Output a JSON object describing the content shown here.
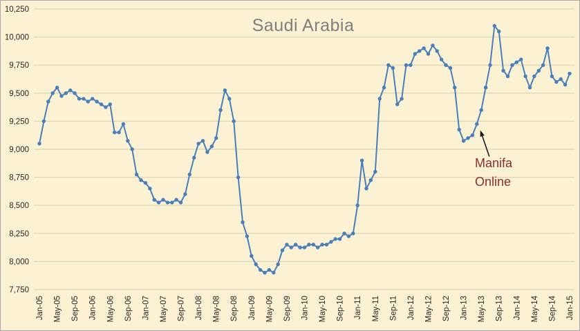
{
  "page": {
    "background": "#FBF1D3",
    "border_color": "#A8A8A8"
  },
  "chart_data": {
    "type": "line",
    "title": "Saudi Arabia",
    "title_color": "#7F7F7F",
    "line_color": "#4A7EBB",
    "marker": "circle",
    "marker_color": "#4A7EBB",
    "grid": "horizontal",
    "grid_color": "#D9CFAC",
    "legend_position": "none",
    "frequency": "monthly",
    "x_first": "Jan-05",
    "x_last": "Jan-15",
    "x_tick_every": 4,
    "x_tick_labels": [
      "Jan-05",
      "May-05",
      "Sep-05",
      "Jan-06",
      "May-06",
      "Sep-06",
      "Jan-07",
      "May-07",
      "Sep-07",
      "Jan-08",
      "May-08",
      "Sep-08",
      "Jan-09",
      "May-09",
      "Sep-09",
      "Jan-10",
      "May-10",
      "Sep-10",
      "Jan-11",
      "May-11",
      "Sep-11",
      "Jan-12",
      "May-12",
      "Sep-12",
      "Jan-13",
      "May-13",
      "Sep-13",
      "Jan-14",
      "May-14",
      "Sep-14",
      "Jan-15"
    ],
    "ylim": [
      7750,
      10250
    ],
    "y_ticks": [
      7750,
      8000,
      8250,
      8500,
      8750,
      9000,
      9250,
      9500,
      9750,
      10000,
      10250
    ],
    "y_tick_labels": [
      "7,750",
      "8,000",
      "8,250",
      "8,500",
      "8,750",
      "9,000",
      "9,250",
      "9,500",
      "9,750",
      "10,000",
      "10,250"
    ],
    "series": [
      {
        "name": "Saudi Arabia",
        "values": [
          9050,
          9250,
          9425,
          9500,
          9550,
          9475,
          9500,
          9525,
          9500,
          9450,
          9450,
          9425,
          9450,
          9425,
          9400,
          9375,
          9400,
          9150,
          9150,
          9225,
          9075,
          9000,
          8775,
          8725,
          8700,
          8650,
          8550,
          8525,
          8550,
          8525,
          8525,
          8550,
          8525,
          8600,
          8775,
          8925,
          9050,
          9075,
          8975,
          9025,
          9100,
          9350,
          9525,
          9450,
          9250,
          8750,
          8350,
          8225,
          8050,
          7975,
          7925,
          7900,
          7925,
          7900,
          7975,
          8100,
          8150,
          8125,
          8150,
          8125,
          8125,
          8150,
          8150,
          8125,
          8150,
          8150,
          8175,
          8200,
          8200,
          8250,
          8225,
          8250,
          8500,
          8900,
          8650,
          8725,
          8800,
          9450,
          9550,
          9750,
          9725,
          9400,
          9450,
          9750,
          9750,
          9850,
          9875,
          9900,
          9850,
          9925,
          9875,
          9800,
          9750,
          9725,
          9550,
          9175,
          9075,
          9100,
          9125,
          9225,
          9350,
          9550,
          9750,
          10100,
          10050,
          9700,
          9650,
          9750,
          9775,
          9800,
          9650,
          9550,
          9650,
          9700,
          9750,
          9900,
          9650,
          9600,
          9625,
          9575,
          9675
        ]
      }
    ],
    "annotation": {
      "line1": "Manifa",
      "line2": "Online",
      "color": "#8B2E2E",
      "arrow_color": "#1a1a1a",
      "arrow_points_to_label": "Apr-13",
      "arrow_points_to_index": 99
    }
  }
}
